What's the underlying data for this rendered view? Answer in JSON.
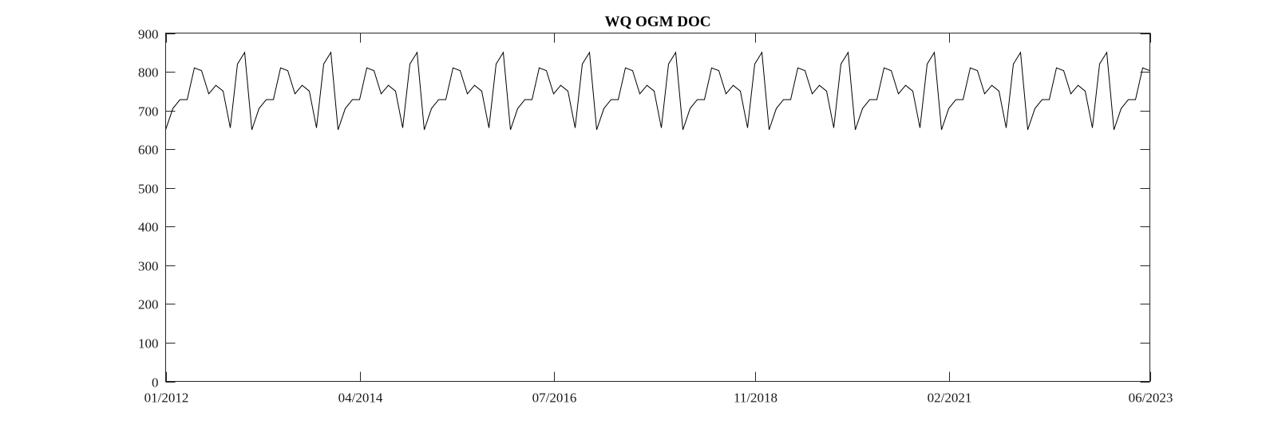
{
  "chart_data": {
    "type": "line",
    "title": "WQ OGM DOC",
    "xlabel": "",
    "ylabel": "",
    "xlim": [
      "2012-01",
      "2023-06"
    ],
    "ylim": [
      0,
      900
    ],
    "grid": false,
    "legend": "none",
    "x_tick_labels": [
      "01/2012",
      "04/2014",
      "07/2016",
      "11/2018",
      "02/2021",
      "06/2023"
    ],
    "y_tick_labels": [
      "0",
      "100",
      "200",
      "300",
      "400",
      "500",
      "600",
      "700",
      "800",
      "900"
    ],
    "line_color": "#000000",
    "series": [
      {
        "x": [
          "2012-01",
          "2012-02",
          "2012-03",
          "2012-04",
          "2012-05",
          "2012-06",
          "2012-07",
          "2012-08",
          "2012-09",
          "2012-10",
          "2012-11",
          "2012-12",
          "2013-01",
          "2013-02",
          "2013-03",
          "2013-04",
          "2013-05",
          "2013-06",
          "2013-07",
          "2013-08",
          "2013-09",
          "2013-10",
          "2013-11",
          "2013-12",
          "2014-01",
          "2014-02",
          "2014-03",
          "2014-04",
          "2014-05",
          "2014-06",
          "2014-07",
          "2014-08",
          "2014-09",
          "2014-10",
          "2014-11",
          "2014-12",
          "2015-01",
          "2015-02",
          "2015-03",
          "2015-04",
          "2015-05",
          "2015-06",
          "2015-07",
          "2015-08",
          "2015-09",
          "2015-10",
          "2015-11",
          "2015-12",
          "2016-01",
          "2016-02",
          "2016-03",
          "2016-04",
          "2016-05",
          "2016-06",
          "2016-07",
          "2016-08",
          "2016-09",
          "2016-10",
          "2016-11",
          "2016-12",
          "2017-01",
          "2017-02",
          "2017-03",
          "2017-04",
          "2017-05",
          "2017-06",
          "2017-07",
          "2017-08",
          "2017-09",
          "2017-10",
          "2017-11",
          "2017-12",
          "2018-01",
          "2018-02",
          "2018-03",
          "2018-04",
          "2018-05",
          "2018-06",
          "2018-07",
          "2018-08",
          "2018-09",
          "2018-10",
          "2018-11",
          "2018-12",
          "2019-01",
          "2019-02",
          "2019-03",
          "2019-04",
          "2019-05",
          "2019-06",
          "2019-07",
          "2019-08",
          "2019-09",
          "2019-10",
          "2019-11",
          "2019-12",
          "2020-01",
          "2020-02",
          "2020-03",
          "2020-04",
          "2020-05",
          "2020-06",
          "2020-07",
          "2020-08",
          "2020-09",
          "2020-10",
          "2020-11",
          "2020-12",
          "2021-01",
          "2021-02",
          "2021-03",
          "2021-04",
          "2021-05",
          "2021-06",
          "2021-07",
          "2021-08",
          "2021-09",
          "2021-10",
          "2021-11",
          "2021-12",
          "2022-01",
          "2022-02",
          "2022-03",
          "2022-04",
          "2022-05",
          "2022-06",
          "2022-07",
          "2022-08",
          "2022-09",
          "2022-10",
          "2022-11",
          "2022-12",
          "2023-01",
          "2023-02",
          "2023-03",
          "2023-04",
          "2023-05",
          "2023-06"
        ],
        "values": [
          650,
          705,
          728,
          728,
          810,
          803,
          743,
          765,
          750,
          655,
          820,
          850,
          650,
          705,
          728,
          728,
          810,
          803,
          743,
          765,
          750,
          655,
          820,
          850,
          650,
          705,
          728,
          728,
          810,
          803,
          743,
          765,
          750,
          655,
          820,
          850,
          650,
          705,
          728,
          728,
          810,
          803,
          743,
          765,
          750,
          655,
          820,
          850,
          650,
          705,
          728,
          728,
          810,
          803,
          743,
          765,
          750,
          655,
          820,
          850,
          650,
          705,
          728,
          728,
          810,
          803,
          743,
          765,
          750,
          655,
          820,
          850,
          650,
          705,
          728,
          728,
          810,
          803,
          743,
          765,
          750,
          655,
          820,
          850,
          650,
          705,
          728,
          728,
          810,
          803,
          743,
          765,
          750,
          655,
          820,
          850,
          650,
          705,
          728,
          728,
          810,
          803,
          743,
          765,
          750,
          655,
          820,
          850,
          650,
          705,
          728,
          728,
          810,
          803,
          743,
          765,
          750,
          655,
          820,
          850,
          650,
          705,
          728,
          728,
          810,
          803,
          743,
          765,
          750,
          655,
          820,
          850,
          650,
          705,
          728,
          728,
          810,
          803
        ]
      }
    ]
  }
}
